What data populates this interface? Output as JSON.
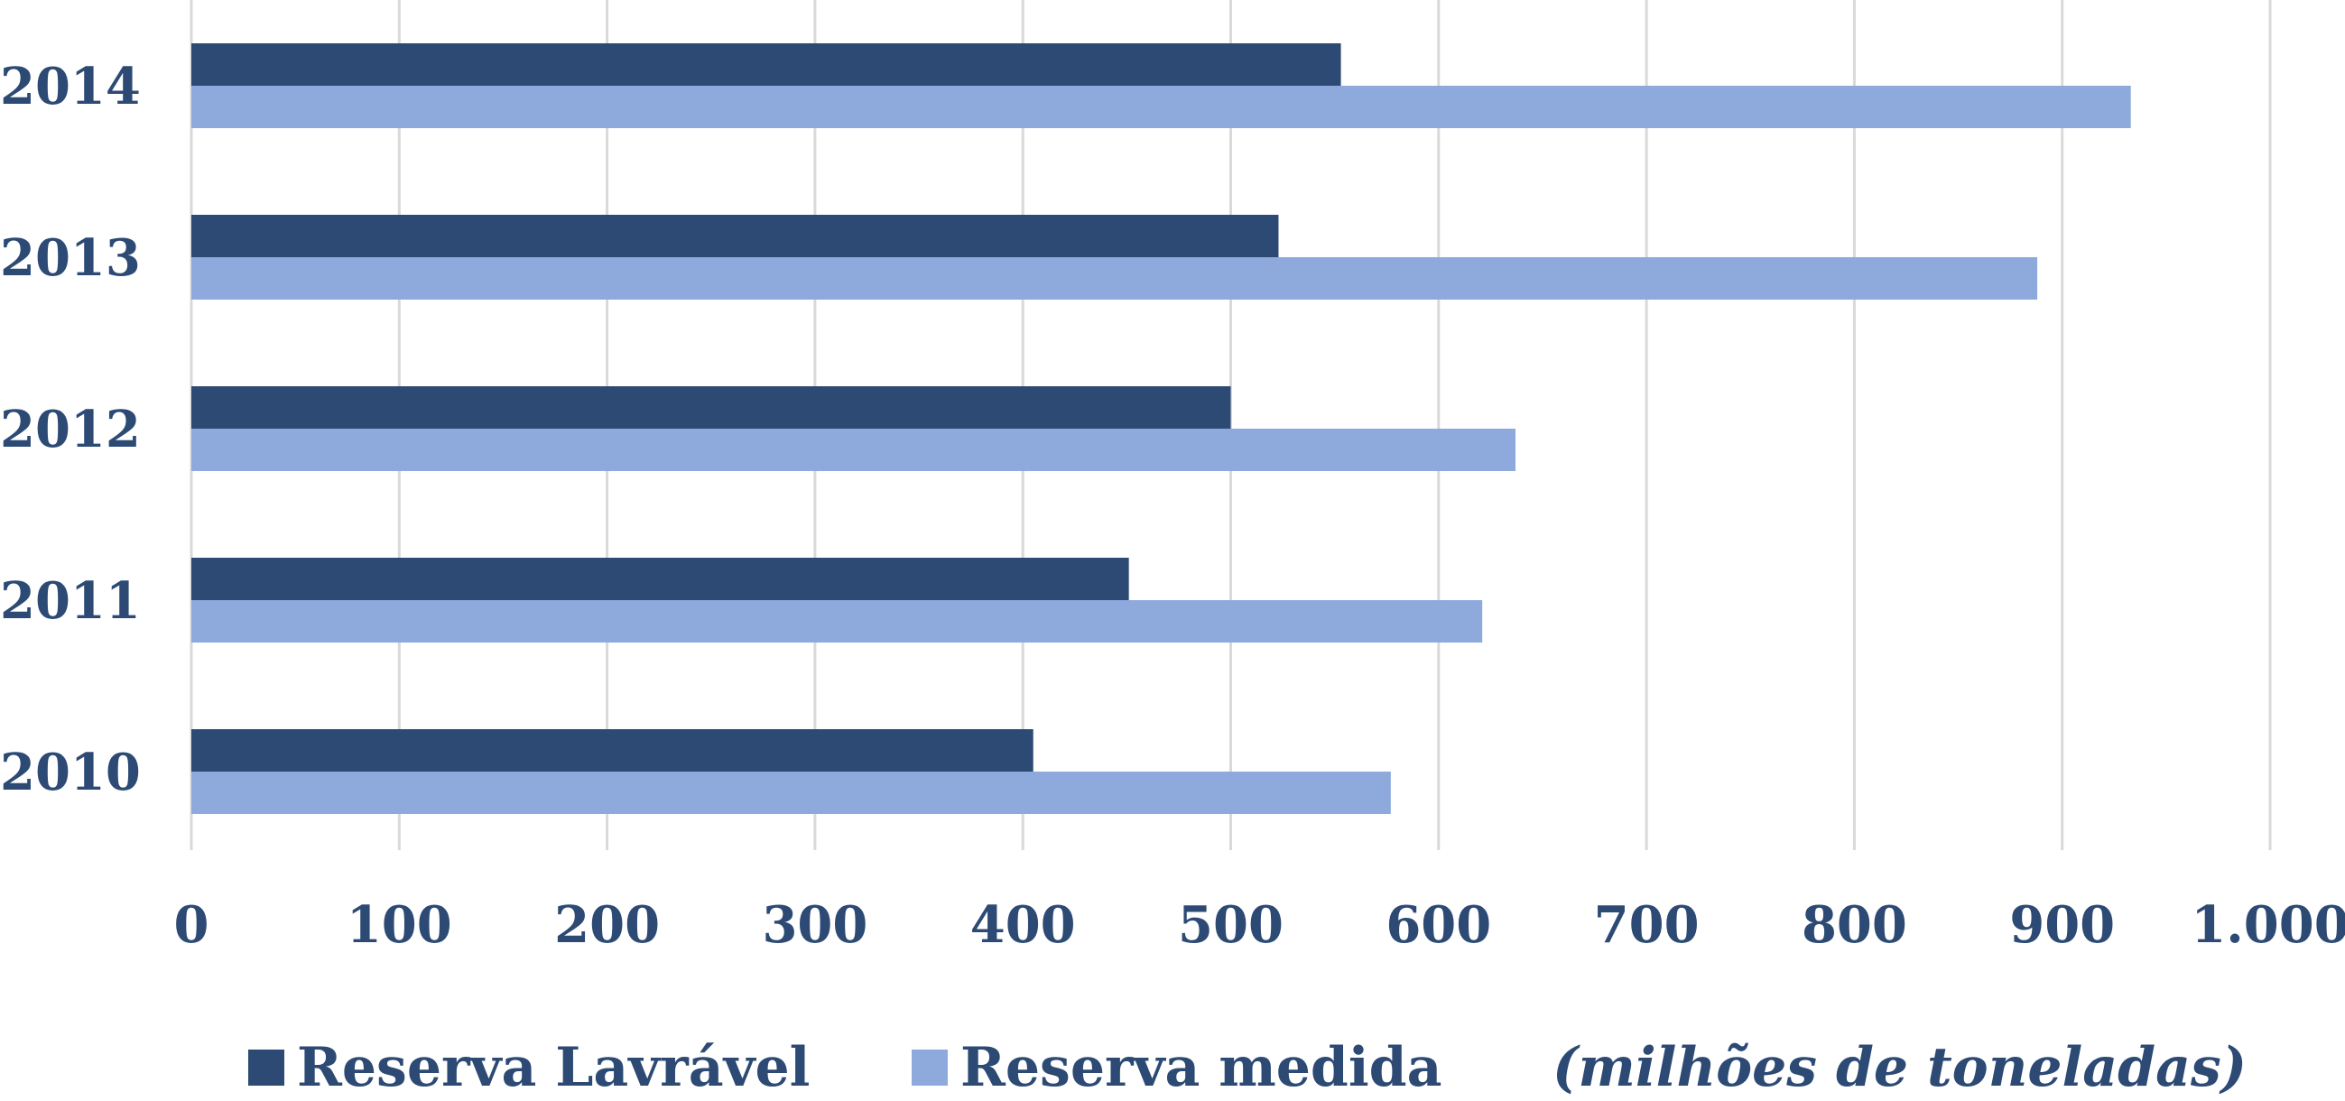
{
  "chart_data": {
    "type": "bar",
    "orientation": "horizontal",
    "categories": [
      "2010",
      "2011",
      "2012",
      "2013",
      "2014"
    ],
    "series": [
      {
        "name": "Reserva Lavrável",
        "color": "#2c4a74",
        "values": [
          405,
          451,
          500,
          523,
          553
        ]
      },
      {
        "name": "Reserva medida",
        "color": "#8eaadc",
        "values": [
          577,
          621,
          637,
          888,
          933
        ]
      }
    ],
    "x_ticks": [
      "0",
      "100",
      "200",
      "300",
      "400",
      "500",
      "600",
      "700",
      "800",
      "900",
      "1.000"
    ],
    "xlim": [
      0,
      1000
    ],
    "grid": "vertical",
    "legend_position": "bottom",
    "unit_note": "(milhões de toneladas)"
  }
}
